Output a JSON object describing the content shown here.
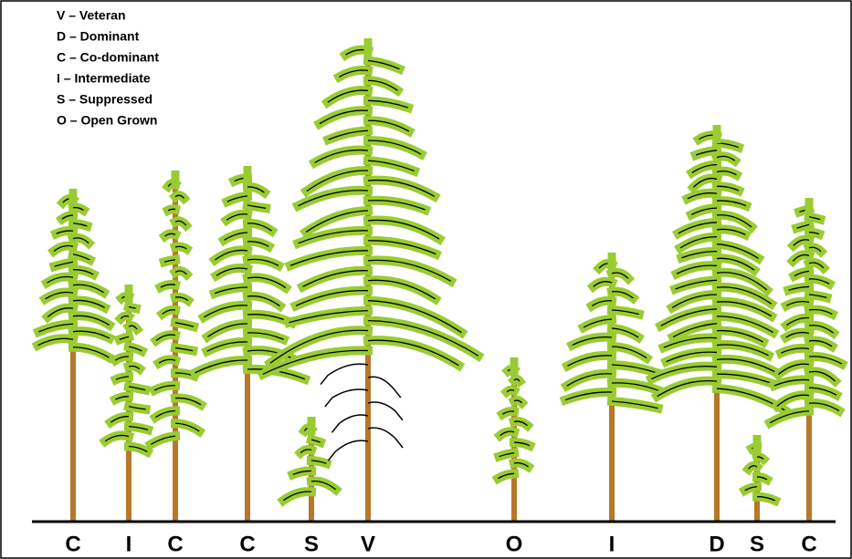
{
  "legend": [
    "V – Veteran",
    "D – Dominant",
    "C – Co-dominant",
    "I – Intermediate",
    "S – Suppressed",
    "O – Open Grown"
  ],
  "trees": {
    "labels": [
      "C",
      "I",
      "C",
      "C",
      "S",
      "V",
      "O",
      "I",
      "D",
      "S",
      "C"
    ]
  }
}
